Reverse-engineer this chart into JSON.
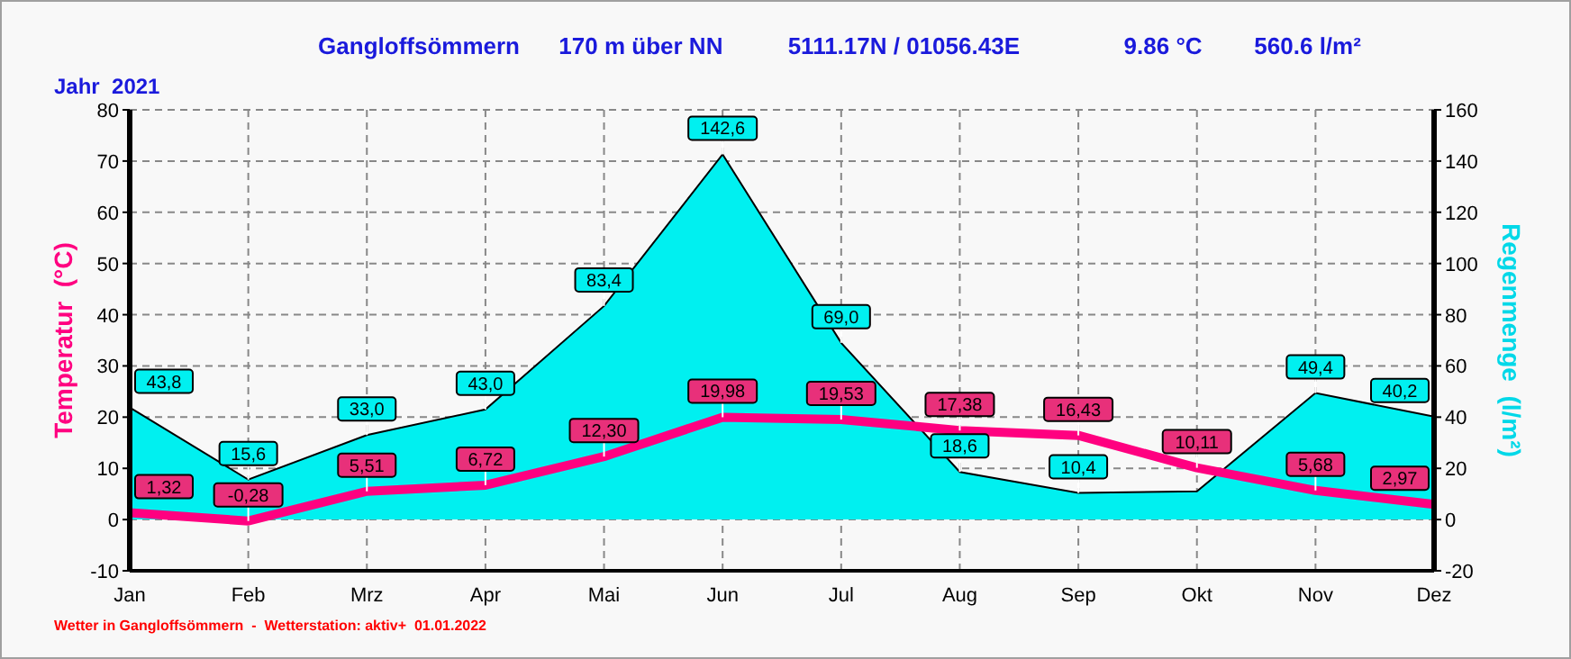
{
  "chart_data": {
    "type": "line",
    "title": "Gangloffsömmern      170 m über NN          5111.17N / 01056.43E                9.86 °C        560.6 l/m²",
    "subtitle": "Jahr  2021",
    "ylabel": "Temperatur  (°C)",
    "y2label": "Regenmenge  (l/m²)",
    "annotations": [
      "Wetter in Gangloffsömmern  -  Wetterstation: aktiv+  01.01.2022"
    ],
    "categories": [
      "Jan",
      "Feb",
      "Mrz",
      "Apr",
      "Mai",
      "Jun",
      "Jul",
      "Aug",
      "Sep",
      "Okt",
      "Nov",
      "Dez"
    ],
    "series": [
      {
        "type": "area",
        "axis": "y2",
        "color": "#00f0f0",
        "values": [
          43.8,
          15.6,
          33.0,
          43.0,
          83.4,
          142.6,
          69.0,
          18.6,
          10.4,
          11,
          49.4,
          40.2
        ],
        "value_labels": [
          "43,8",
          "15,6",
          "33,0",
          "43,0",
          "83,4",
          "142,6",
          "69,0",
          "18,6",
          "10,4",
          null,
          "49,4",
          "40,2"
        ]
      },
      {
        "color": "#ff0080",
        "values": [
          1.32,
          -0.28,
          5.51,
          6.72,
          12.3,
          19.98,
          19.53,
          17.38,
          16.43,
          10.11,
          5.68,
          2.97
        ],
        "value_labels": [
          "1,32",
          "-0,28",
          "5,51",
          "6,72",
          "12,30",
          "19,98",
          "19,53",
          "17,38",
          "16,43",
          "10,11",
          "5,68",
          "2,97"
        ]
      }
    ],
    "ylim": [
      -10,
      80
    ],
    "yticks": [
      -10,
      0,
      10,
      20,
      30,
      40,
      50,
      60,
      70,
      80
    ],
    "y2lim": [
      -20,
      160
    ],
    "y2ticks": [
      -20,
      0,
      20,
      40,
      60,
      80,
      100,
      120,
      140,
      160
    ],
    "grid": true
  }
}
